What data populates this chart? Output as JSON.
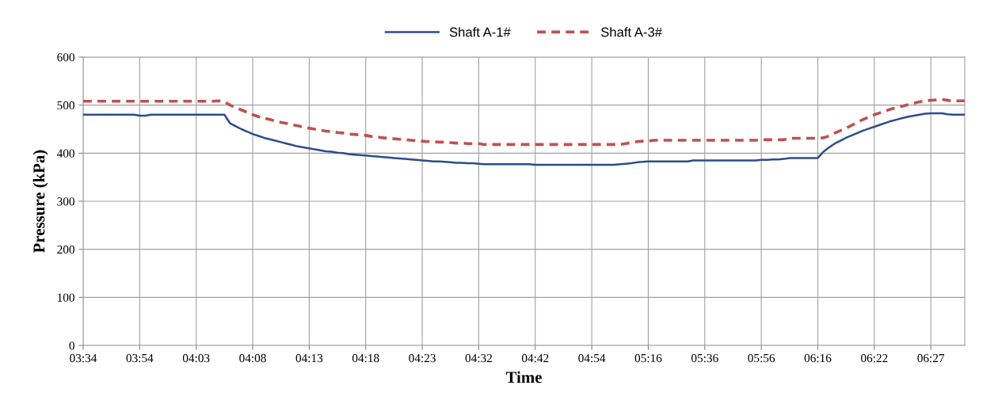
{
  "chart_data": {
    "type": "line",
    "xlabel": "Time",
    "ylabel": "Pressure (kPa)",
    "categories": [
      "03:34",
      null,
      null,
      null,
      null,
      null,
      null,
      null,
      null,
      null,
      "03:54",
      null,
      null,
      null,
      null,
      null,
      null,
      null,
      null,
      null,
      "04:03",
      null,
      null,
      null,
      null,
      null,
      null,
      null,
      null,
      null,
      "04:08",
      null,
      null,
      null,
      null,
      null,
      null,
      null,
      null,
      null,
      "04:13",
      null,
      null,
      null,
      null,
      null,
      null,
      null,
      null,
      null,
      "04:18",
      null,
      null,
      null,
      null,
      null,
      null,
      null,
      null,
      null,
      "04:23",
      null,
      null,
      null,
      null,
      null,
      null,
      null,
      null,
      null,
      "04:32",
      null,
      null,
      null,
      null,
      null,
      null,
      null,
      null,
      null,
      "04:42",
      null,
      null,
      null,
      null,
      null,
      null,
      null,
      null,
      null,
      "04:54",
      null,
      null,
      null,
      null,
      null,
      null,
      null,
      null,
      null,
      "05:16",
      null,
      null,
      null,
      null,
      null,
      null,
      null,
      null,
      null,
      "05:36",
      null,
      null,
      null,
      null,
      null,
      null,
      null,
      null,
      null,
      "05:56",
      null,
      null,
      null,
      null,
      null,
      null,
      null,
      null,
      null,
      "06:16",
      null,
      null,
      null,
      null,
      null,
      null,
      null,
      null,
      null,
      "06:22",
      null,
      null,
      null,
      null,
      null,
      null,
      null,
      null,
      null,
      "06:27",
      null,
      null,
      null,
      null,
      null,
      null
    ],
    "series": [
      {
        "name": "Shaft A-1#",
        "color": "#2a4d8a",
        "line_style": "solid",
        "values": [
          480,
          480,
          480,
          480,
          480,
          480,
          480,
          480,
          480,
          480,
          478,
          478,
          480,
          480,
          480,
          480,
          480,
          480,
          480,
          480,
          480,
          480,
          480,
          480,
          480,
          480,
          462,
          456,
          450,
          445,
          440,
          436,
          432,
          429,
          426,
          423,
          420,
          417,
          414,
          412,
          410,
          408,
          406,
          404,
          403,
          401,
          400,
          398,
          397,
          396,
          395,
          394,
          393,
          392,
          391,
          390,
          389,
          388,
          387,
          386,
          385,
          384,
          383,
          383,
          382,
          381,
          380,
          380,
          379,
          379,
          378,
          377,
          377,
          377,
          377,
          377,
          377,
          377,
          377,
          377,
          376,
          376,
          376,
          376,
          376,
          376,
          376,
          376,
          376,
          376,
          376,
          376,
          376,
          376,
          376,
          377,
          378,
          379,
          381,
          382,
          383,
          383,
          383,
          383,
          383,
          383,
          383,
          383,
          385,
          385,
          385,
          385,
          385,
          385,
          385,
          385,
          385,
          385,
          385,
          385,
          386,
          386,
          387,
          387,
          388,
          390,
          390,
          390,
          390,
          390,
          390,
          403,
          412,
          420,
          426,
          432,
          437,
          442,
          447,
          451,
          455,
          459,
          463,
          467,
          470,
          473,
          476,
          478,
          480,
          482,
          483,
          483,
          483,
          481,
          480,
          480,
          480
        ]
      },
      {
        "name": "Shaft A-3#",
        "color": "#c0504d",
        "line_style": "dashed",
        "values": [
          508,
          508,
          508,
          508,
          508,
          508,
          508,
          508,
          508,
          508,
          508,
          508,
          508,
          508,
          508,
          508,
          508,
          508,
          508,
          508,
          508,
          508,
          508,
          508,
          509,
          507,
          500,
          495,
          490,
          485,
          480,
          476,
          473,
          470,
          467,
          464,
          462,
          459,
          457,
          454,
          452,
          450,
          448,
          446,
          445,
          443,
          442,
          440,
          439,
          438,
          437,
          435,
          434,
          432,
          431,
          430,
          429,
          428,
          427,
          426,
          425,
          424,
          424,
          423,
          423,
          422,
          421,
          421,
          420,
          420,
          420,
          418,
          418,
          418,
          418,
          418,
          418,
          418,
          418,
          418,
          418,
          418,
          418,
          418,
          418,
          418,
          418,
          418,
          418,
          418,
          418,
          418,
          418,
          418,
          418,
          418,
          420,
          422,
          424,
          425,
          425,
          427,
          427,
          427,
          427,
          427,
          427,
          427,
          427,
          427,
          427,
          427,
          427,
          427,
          427,
          427,
          427,
          427,
          427,
          427,
          428,
          428,
          428,
          428,
          428,
          431,
          431,
          431,
          431,
          431,
          431,
          432,
          436,
          442,
          447,
          452,
          458,
          464,
          470,
          475,
          480,
          484,
          488,
          492,
          495,
          498,
          501,
          504,
          507,
          509,
          510,
          511,
          512,
          510,
          508,
          509,
          509
        ]
      }
    ],
    "ylim": [
      0,
      600
    ],
    "yticks": [
      0,
      100,
      200,
      300,
      400,
      500,
      600
    ],
    "grid": true,
    "legend": "top"
  }
}
